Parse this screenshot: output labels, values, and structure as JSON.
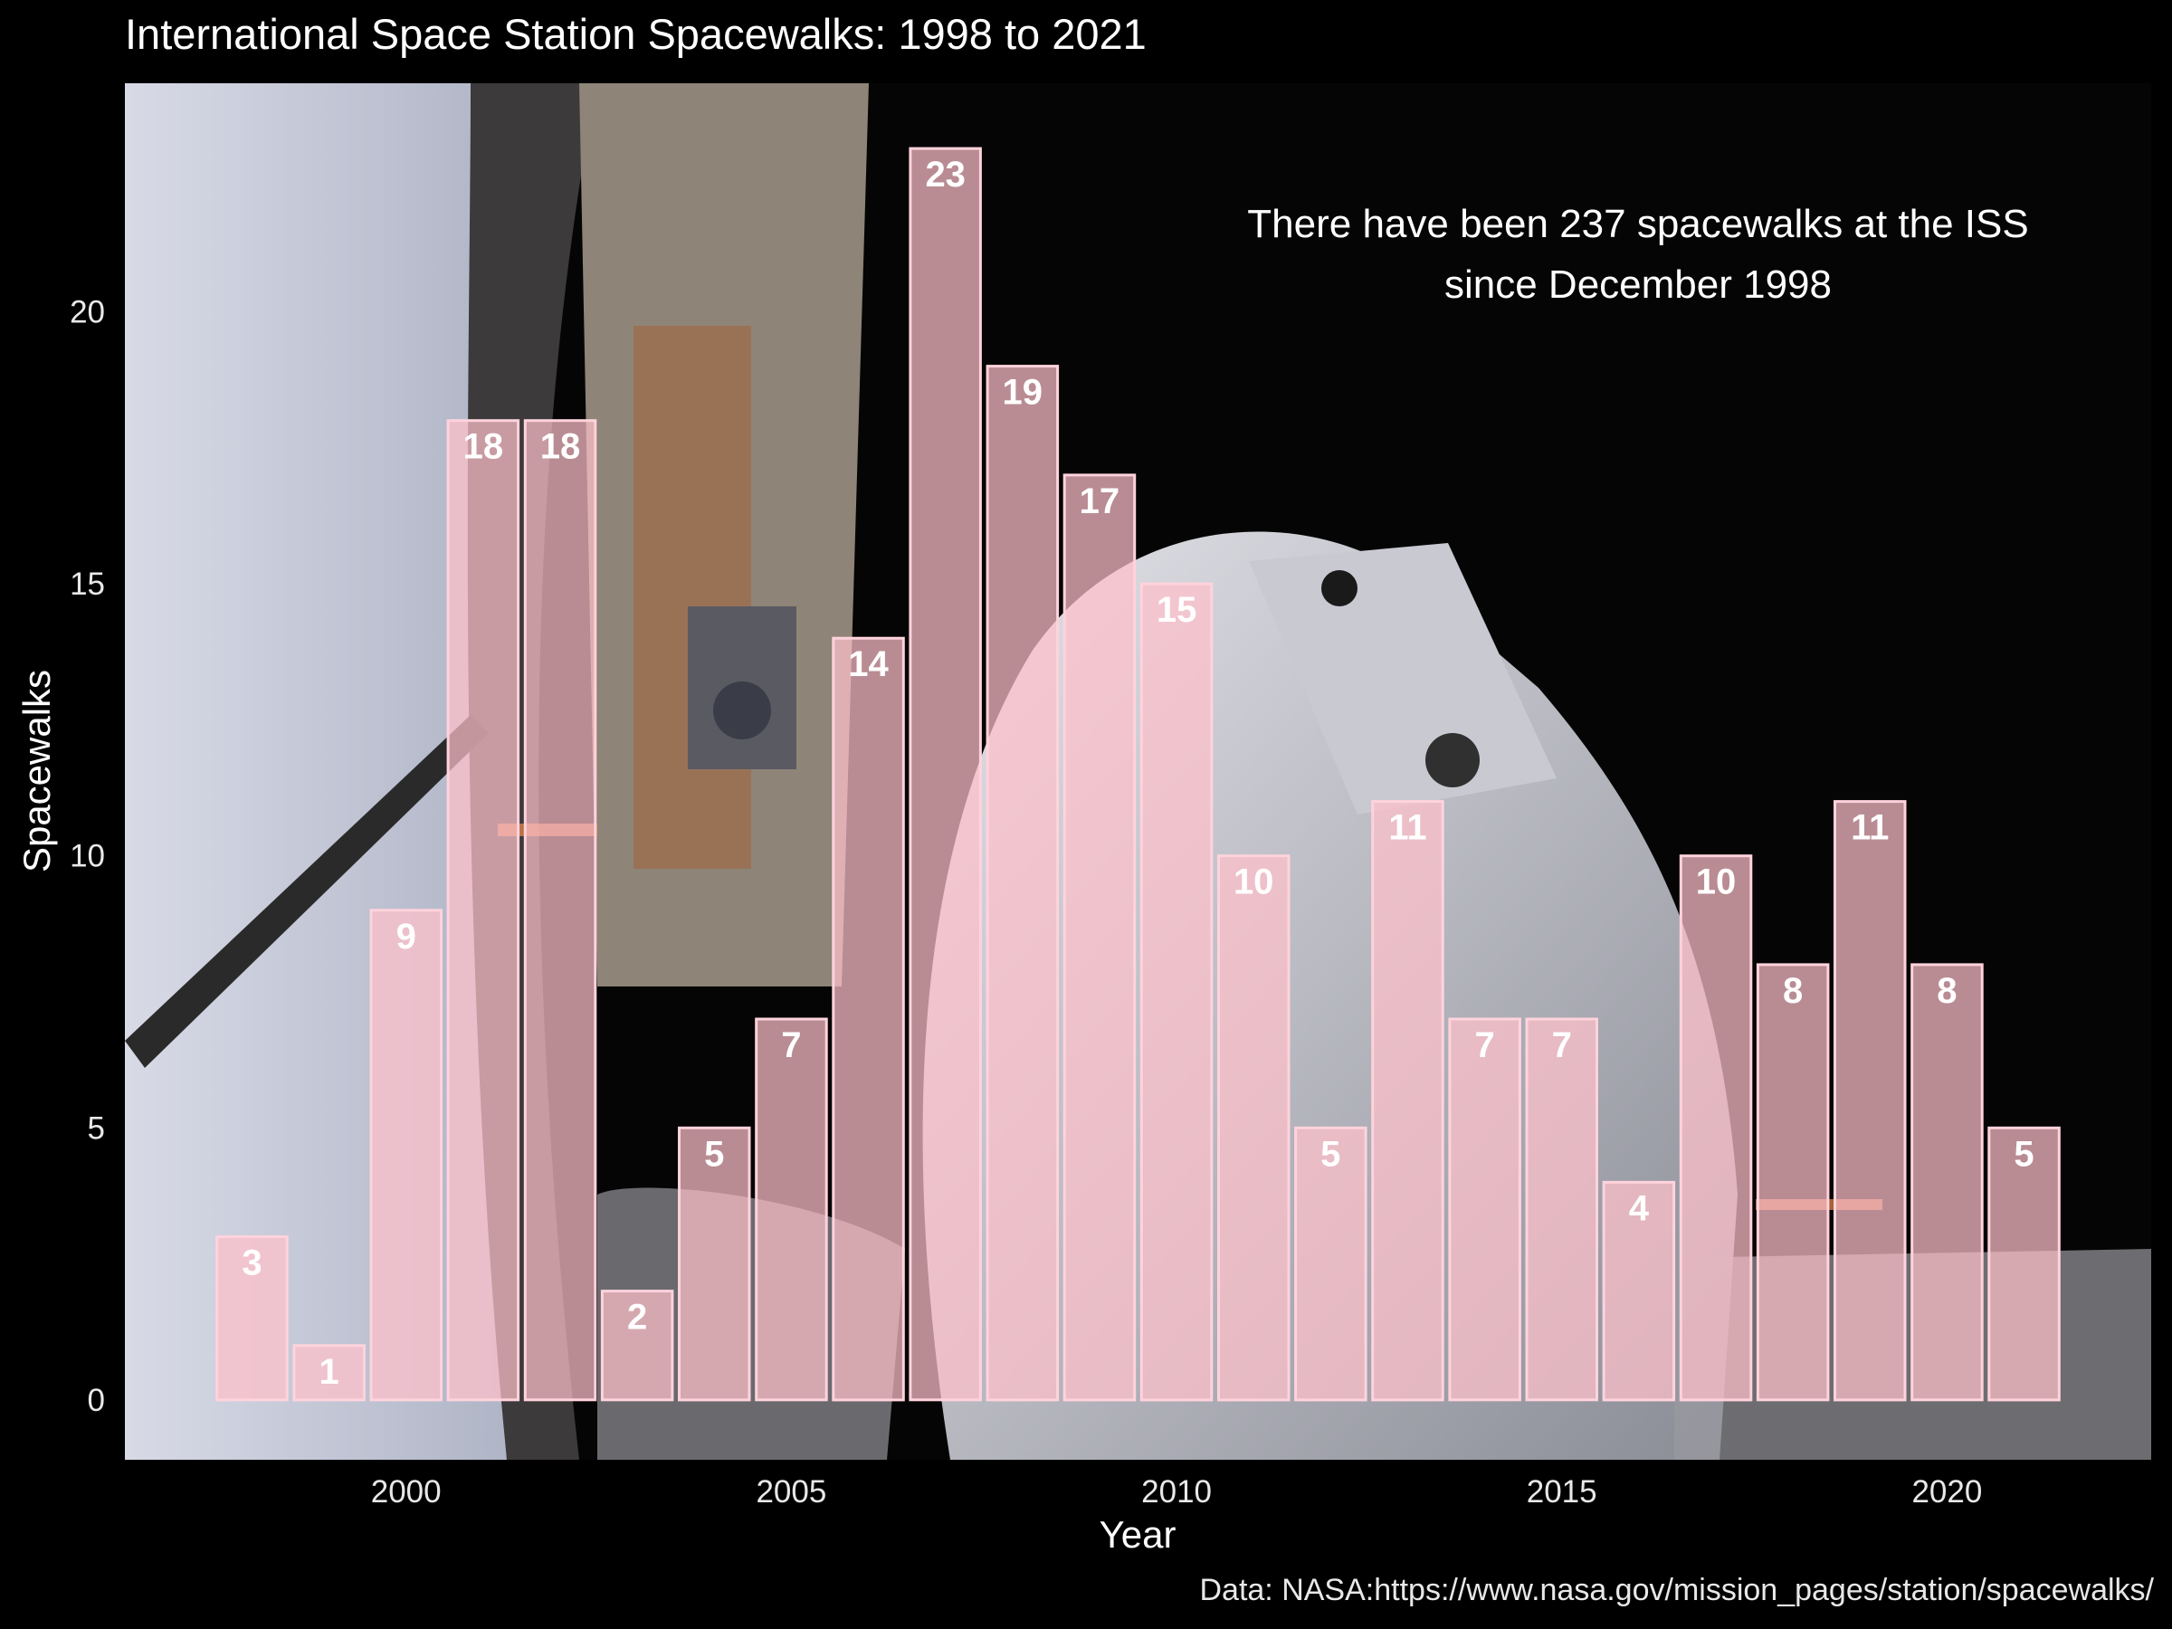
{
  "colors": {
    "background": "#000000",
    "bar_fill": "#ffc0cb",
    "bar_stroke": "#ffd3dc",
    "text": "#ffffff"
  },
  "background_image": "spacewalk-photo",
  "chart_data": {
    "type": "bar",
    "title": "International Space Station Spacewalks: 1998 to 2021",
    "annotation": [
      "There have been 237 spacewalks at the ISS",
      "since December 1998"
    ],
    "xlabel": "Year",
    "ylabel": "Spacewalks",
    "caption": "Data: NASA:https://www.nasa.gov/mission_pages/station/spacewalks/",
    "x": [
      1998,
      1999,
      2000,
      2001,
      2002,
      2003,
      2004,
      2005,
      2006,
      2007,
      2008,
      2009,
      2010,
      2011,
      2012,
      2013,
      2014,
      2015,
      2016,
      2017,
      2018,
      2019,
      2020,
      2021
    ],
    "values": [
      3,
      1,
      9,
      18,
      18,
      2,
      5,
      7,
      14,
      23,
      19,
      17,
      15,
      10,
      5,
      11,
      7,
      7,
      4,
      10,
      8,
      11,
      8,
      5
    ],
    "xlim": [
      1996.35,
      2022.65
    ],
    "ylim": [
      -1.1,
      24.2
    ],
    "xticks": [
      2000,
      2005,
      2010,
      2015,
      2020
    ],
    "yticks": [
      0,
      5,
      10,
      15,
      20
    ],
    "grid": false,
    "legend": "none"
  }
}
